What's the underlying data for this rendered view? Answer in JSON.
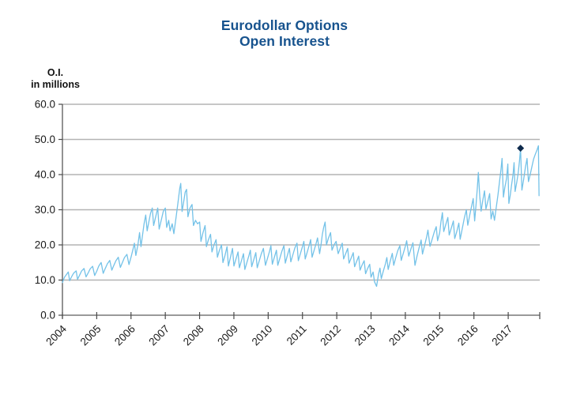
{
  "title": {
    "line1": "Eurodollar Options",
    "line2": "Open Interest",
    "color": "#17538e"
  },
  "y_axis_unit": {
    "line1": "O.I.",
    "line2": "in millions"
  },
  "chart_data": {
    "type": "line",
    "title": "Eurodollar Options Open Interest",
    "xlabel": "",
    "ylabel": "O.I. in millions",
    "xlim": [
      2004,
      2017.92
    ],
    "ylim": [
      0,
      60
    ],
    "yticks": [
      0,
      10,
      20,
      30,
      40,
      50,
      60
    ],
    "ytick_labels": [
      "0.0",
      "10.0",
      "20.0",
      "30.0",
      "40.0",
      "50.0",
      "60.0"
    ],
    "xticks": [
      2004,
      2005,
      2006,
      2007,
      2008,
      2009,
      2010,
      2011,
      2012,
      2013,
      2014,
      2015,
      2016,
      2017
    ],
    "grid": "horizontal",
    "legend": "none",
    "colors": {
      "line": "#74c2e8",
      "marker": "#0e2a4c",
      "grid": "#b3b3b3",
      "axis_line": "#999999",
      "axis": "#4a4a4a",
      "tick_label": "#1a1a1a"
    },
    "marker_point": {
      "x": 2017.36,
      "y": 47.5
    },
    "series": [
      {
        "name": "Eurodollar options open interest (millions of contracts)",
        "points": [
          [
            2004.0,
            9.3
          ],
          [
            2004.06,
            10.8
          ],
          [
            2004.12,
            11.6
          ],
          [
            2004.17,
            12.3
          ],
          [
            2004.21,
            9.8
          ],
          [
            2004.27,
            11.0
          ],
          [
            2004.33,
            12.0
          ],
          [
            2004.4,
            12.6
          ],
          [
            2004.44,
            10.2
          ],
          [
            2004.5,
            11.4
          ],
          [
            2004.56,
            12.6
          ],
          [
            2004.63,
            13.3
          ],
          [
            2004.69,
            10.9
          ],
          [
            2004.75,
            12.0
          ],
          [
            2004.81,
            13.2
          ],
          [
            2004.88,
            13.9
          ],
          [
            2004.94,
            11.3
          ],
          [
            2005.0,
            12.5
          ],
          [
            2005.06,
            14.0
          ],
          [
            2005.13,
            15.0
          ],
          [
            2005.19,
            11.9
          ],
          [
            2005.25,
            13.3
          ],
          [
            2005.31,
            14.6
          ],
          [
            2005.38,
            15.6
          ],
          [
            2005.44,
            12.8
          ],
          [
            2005.5,
            14.2
          ],
          [
            2005.56,
            15.5
          ],
          [
            2005.63,
            16.5
          ],
          [
            2005.69,
            13.6
          ],
          [
            2005.75,
            15.0
          ],
          [
            2005.81,
            16.4
          ],
          [
            2005.88,
            17.3
          ],
          [
            2005.94,
            14.4
          ],
          [
            2006.0,
            16.5
          ],
          [
            2006.05,
            18.5
          ],
          [
            2006.1,
            20.5
          ],
          [
            2006.14,
            17.0
          ],
          [
            2006.2,
            20.0
          ],
          [
            2006.25,
            23.5
          ],
          [
            2006.29,
            19.5
          ],
          [
            2006.34,
            23.0
          ],
          [
            2006.38,
            26.0
          ],
          [
            2006.43,
            28.5
          ],
          [
            2006.47,
            24.0
          ],
          [
            2006.52,
            26.5
          ],
          [
            2006.57,
            29.0
          ],
          [
            2006.62,
            30.5
          ],
          [
            2006.66,
            25.5
          ],
          [
            2006.72,
            28.0
          ],
          [
            2006.78,
            30.5
          ],
          [
            2006.82,
            24.5
          ],
          [
            2006.88,
            27.0
          ],
          [
            2006.94,
            29.5
          ],
          [
            2007.0,
            30.5
          ],
          [
            2007.04,
            25.0
          ],
          [
            2007.1,
            27.0
          ],
          [
            2007.14,
            24.0
          ],
          [
            2007.2,
            26.0
          ],
          [
            2007.25,
            23.2
          ],
          [
            2007.31,
            27.5
          ],
          [
            2007.37,
            32.0
          ],
          [
            2007.42,
            36.0
          ],
          [
            2007.45,
            37.5
          ],
          [
            2007.49,
            29.5
          ],
          [
            2007.54,
            32.5
          ],
          [
            2007.58,
            35.0
          ],
          [
            2007.62,
            35.8
          ],
          [
            2007.66,
            28.0
          ],
          [
            2007.72,
            30.5
          ],
          [
            2007.78,
            31.5
          ],
          [
            2007.82,
            25.5
          ],
          [
            2007.88,
            27.0
          ],
          [
            2007.94,
            26.0
          ],
          [
            2008.0,
            26.5
          ],
          [
            2008.04,
            21.0
          ],
          [
            2008.1,
            23.5
          ],
          [
            2008.16,
            25.5
          ],
          [
            2008.2,
            19.5
          ],
          [
            2008.26,
            21.5
          ],
          [
            2008.32,
            23.0
          ],
          [
            2008.36,
            18.0
          ],
          [
            2008.42,
            20.0
          ],
          [
            2008.48,
            21.5
          ],
          [
            2008.52,
            16.5
          ],
          [
            2008.58,
            18.5
          ],
          [
            2008.64,
            20.0
          ],
          [
            2008.68,
            15.0
          ],
          [
            2008.74,
            17.0
          ],
          [
            2008.8,
            19.5
          ],
          [
            2008.84,
            14.0
          ],
          [
            2008.9,
            16.5
          ],
          [
            2008.96,
            19.0
          ],
          [
            2009.0,
            14.0
          ],
          [
            2009.06,
            16.0
          ],
          [
            2009.12,
            18.0
          ],
          [
            2009.16,
            13.5
          ],
          [
            2009.22,
            15.5
          ],
          [
            2009.28,
            17.5
          ],
          [
            2009.32,
            13.0
          ],
          [
            2009.38,
            15.0
          ],
          [
            2009.44,
            17.0
          ],
          [
            2009.48,
            18.5
          ],
          [
            2009.52,
            13.8
          ],
          [
            2009.58,
            15.8
          ],
          [
            2009.64,
            17.8
          ],
          [
            2009.68,
            13.5
          ],
          [
            2009.74,
            15.5
          ],
          [
            2009.8,
            17.5
          ],
          [
            2009.86,
            19.0
          ],
          [
            2009.92,
            14.2
          ],
          [
            2009.98,
            16.2
          ],
          [
            2010.04,
            18.2
          ],
          [
            2010.08,
            19.8
          ],
          [
            2010.12,
            14.5
          ],
          [
            2010.18,
            16.5
          ],
          [
            2010.24,
            18.5
          ],
          [
            2010.28,
            14.2
          ],
          [
            2010.34,
            16.2
          ],
          [
            2010.4,
            18.2
          ],
          [
            2010.46,
            19.8
          ],
          [
            2010.5,
            14.8
          ],
          [
            2010.56,
            17.0
          ],
          [
            2010.62,
            19.0
          ],
          [
            2010.66,
            15.2
          ],
          [
            2010.72,
            17.2
          ],
          [
            2010.78,
            19.2
          ],
          [
            2010.84,
            20.5
          ],
          [
            2010.88,
            15.5
          ],
          [
            2010.94,
            17.5
          ],
          [
            2011.0,
            19.5
          ],
          [
            2011.04,
            21.0
          ],
          [
            2011.08,
            16.0
          ],
          [
            2011.14,
            18.0
          ],
          [
            2011.2,
            20.0
          ],
          [
            2011.24,
            21.5
          ],
          [
            2011.28,
            16.5
          ],
          [
            2011.34,
            18.5
          ],
          [
            2011.4,
            20.5
          ],
          [
            2011.44,
            22.0
          ],
          [
            2011.5,
            17.5
          ],
          [
            2011.54,
            20.0
          ],
          [
            2011.58,
            23.0
          ],
          [
            2011.62,
            25.0
          ],
          [
            2011.66,
            26.5
          ],
          [
            2011.7,
            20.0
          ],
          [
            2011.76,
            22.0
          ],
          [
            2011.82,
            23.5
          ],
          [
            2011.86,
            18.5
          ],
          [
            2011.92,
            20.0
          ],
          [
            2011.98,
            21.0
          ],
          [
            2012.04,
            17.5
          ],
          [
            2012.1,
            19.0
          ],
          [
            2012.16,
            20.5
          ],
          [
            2012.2,
            16.0
          ],
          [
            2012.26,
            17.5
          ],
          [
            2012.32,
            19.0
          ],
          [
            2012.36,
            14.8
          ],
          [
            2012.42,
            16.3
          ],
          [
            2012.48,
            17.8
          ],
          [
            2012.52,
            13.8
          ],
          [
            2012.58,
            15.3
          ],
          [
            2012.64,
            16.8
          ],
          [
            2012.68,
            12.8
          ],
          [
            2012.74,
            14.3
          ],
          [
            2012.8,
            15.5
          ],
          [
            2012.84,
            11.8
          ],
          [
            2012.9,
            13.3
          ],
          [
            2012.96,
            14.5
          ],
          [
            2013.0,
            10.8
          ],
          [
            2013.06,
            12.3
          ],
          [
            2013.1,
            9.5
          ],
          [
            2013.16,
            8.2
          ],
          [
            2013.22,
            11.8
          ],
          [
            2013.26,
            13.4
          ],
          [
            2013.3,
            10.4
          ],
          [
            2013.36,
            12.6
          ],
          [
            2013.42,
            14.6
          ],
          [
            2013.46,
            16.4
          ],
          [
            2013.5,
            13.0
          ],
          [
            2013.56,
            15.4
          ],
          [
            2013.62,
            17.6
          ],
          [
            2013.66,
            14.2
          ],
          [
            2013.72,
            16.4
          ],
          [
            2013.78,
            18.4
          ],
          [
            2013.84,
            19.8
          ],
          [
            2013.88,
            15.6
          ],
          [
            2013.94,
            17.6
          ],
          [
            2014.0,
            19.6
          ],
          [
            2014.04,
            21.2
          ],
          [
            2014.1,
            16.8
          ],
          [
            2014.16,
            18.8
          ],
          [
            2014.22,
            20.6
          ],
          [
            2014.28,
            14.2
          ],
          [
            2014.34,
            16.8
          ],
          [
            2014.4,
            19.2
          ],
          [
            2014.46,
            21.4
          ],
          [
            2014.5,
            17.4
          ],
          [
            2014.56,
            19.8
          ],
          [
            2014.62,
            22.2
          ],
          [
            2014.66,
            24.2
          ],
          [
            2014.72,
            19.6
          ],
          [
            2014.78,
            21.6
          ],
          [
            2014.84,
            23.6
          ],
          [
            2014.9,
            25.2
          ],
          [
            2014.94,
            21.2
          ],
          [
            2015.0,
            23.4
          ],
          [
            2015.04,
            26.6
          ],
          [
            2015.08,
            29.2
          ],
          [
            2015.12,
            23.8
          ],
          [
            2015.18,
            25.8
          ],
          [
            2015.24,
            27.8
          ],
          [
            2015.28,
            22.8
          ],
          [
            2015.34,
            24.8
          ],
          [
            2015.4,
            26.8
          ],
          [
            2015.44,
            21.8
          ],
          [
            2015.5,
            23.8
          ],
          [
            2015.56,
            26.2
          ],
          [
            2015.6,
            21.6
          ],
          [
            2015.66,
            24.6
          ],
          [
            2015.72,
            27.6
          ],
          [
            2015.78,
            30.0
          ],
          [
            2015.82,
            25.6
          ],
          [
            2015.88,
            28.6
          ],
          [
            2015.94,
            31.4
          ],
          [
            2015.98,
            33.2
          ],
          [
            2016.02,
            26.8
          ],
          [
            2016.06,
            31.2
          ],
          [
            2016.1,
            36.2
          ],
          [
            2016.13,
            40.6
          ],
          [
            2016.17,
            33.8
          ],
          [
            2016.21,
            29.6
          ],
          [
            2016.26,
            32.8
          ],
          [
            2016.31,
            35.4
          ],
          [
            2016.35,
            30.2
          ],
          [
            2016.41,
            32.6
          ],
          [
            2016.46,
            34.6
          ],
          [
            2016.5,
            27.4
          ],
          [
            2016.55,
            29.6
          ],
          [
            2016.6,
            27.0
          ],
          [
            2016.65,
            30.6
          ],
          [
            2016.7,
            34.2
          ],
          [
            2016.75,
            38.2
          ],
          [
            2016.79,
            41.6
          ],
          [
            2016.82,
            44.6
          ],
          [
            2016.86,
            33.6
          ],
          [
            2016.9,
            36.2
          ],
          [
            2016.95,
            38.8
          ],
          [
            2016.99,
            43.0
          ],
          [
            2017.02,
            31.8
          ],
          [
            2017.06,
            34.2
          ],
          [
            2017.1,
            37.2
          ],
          [
            2017.14,
            40.0
          ],
          [
            2017.17,
            43.4
          ],
          [
            2017.2,
            35.2
          ],
          [
            2017.25,
            37.8
          ],
          [
            2017.29,
            40.4
          ],
          [
            2017.33,
            44.0
          ],
          [
            2017.36,
            47.5
          ],
          [
            2017.4,
            35.6
          ],
          [
            2017.45,
            38.6
          ],
          [
            2017.5,
            42.0
          ],
          [
            2017.55,
            44.6
          ],
          [
            2017.59,
            38.0
          ],
          [
            2017.64,
            40.0
          ],
          [
            2017.69,
            42.2
          ],
          [
            2017.74,
            44.4
          ],
          [
            2017.79,
            45.8
          ],
          [
            2017.84,
            47.0
          ],
          [
            2017.88,
            48.2
          ],
          [
            2017.9,
            34.0
          ]
        ]
      }
    ]
  }
}
